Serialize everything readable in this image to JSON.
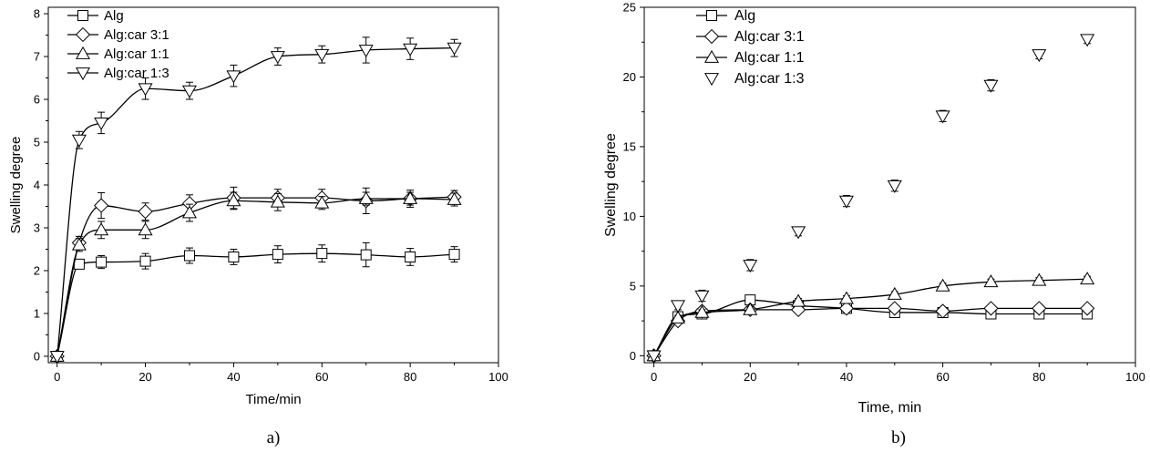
{
  "chart_data": [
    {
      "type": "line",
      "caption": "a)",
      "xlabel": "Time/min",
      "ylabel": "Swelling degree",
      "xlim": [
        -2,
        100
      ],
      "ylim": [
        -0.15,
        8.15
      ],
      "xticks": [
        0,
        20,
        40,
        60,
        80,
        100
      ],
      "yticks": [
        0,
        1,
        2,
        3,
        4,
        5,
        6,
        7,
        8
      ],
      "legend_position": "top-left",
      "x": [
        0,
        5,
        10,
        20,
        30,
        40,
        50,
        60,
        70,
        80,
        90
      ],
      "series": [
        {
          "name": "Alg",
          "marker": "square",
          "line": true,
          "values": [
            0,
            2.15,
            2.2,
            2.22,
            2.35,
            2.32,
            2.38,
            2.4,
            2.37,
            2.32,
            2.38
          ],
          "errors": [
            0,
            0.1,
            0.15,
            0.18,
            0.18,
            0.18,
            0.2,
            0.2,
            0.28,
            0.2,
            0.18
          ]
        },
        {
          "name": "Alg:car 3:1",
          "marker": "diamond",
          "line": true,
          "values": [
            0,
            2.65,
            3.52,
            3.38,
            3.57,
            3.7,
            3.7,
            3.7,
            3.63,
            3.68,
            3.72
          ],
          "errors": [
            0,
            0.15,
            0.3,
            0.2,
            0.2,
            0.25,
            0.2,
            0.2,
            0.3,
            0.2,
            0.15
          ]
        },
        {
          "name": "Alg:car 1:1",
          "marker": "triangle-up",
          "line": true,
          "values": [
            0,
            2.6,
            2.95,
            2.95,
            3.35,
            3.63,
            3.6,
            3.58,
            3.68,
            3.68,
            3.66
          ],
          "errors": [
            0,
            0.15,
            0.2,
            0.2,
            0.2,
            0.2,
            0.2,
            0.15,
            0.15,
            0.15,
            0.15
          ]
        },
        {
          "name": "Alg:car 1:3",
          "marker": "triangle-down",
          "line": true,
          "values": [
            0,
            5.05,
            5.45,
            6.25,
            6.2,
            6.55,
            7.0,
            7.05,
            7.15,
            7.18,
            7.2
          ],
          "errors": [
            0,
            0.2,
            0.25,
            0.25,
            0.2,
            0.25,
            0.2,
            0.2,
            0.3,
            0.25,
            0.2
          ]
        }
      ]
    },
    {
      "type": "line",
      "caption": "b)",
      "xlabel": "Time, min",
      "ylabel": "Swelling degree",
      "xlim": [
        -2,
        100
      ],
      "ylim": [
        -0.5,
        25
      ],
      "xticks": [
        0,
        20,
        40,
        60,
        80,
        100
      ],
      "yticks": [
        0,
        5,
        10,
        15,
        20,
        25
      ],
      "legend_position": "top-left",
      "x": [
        0,
        5,
        10,
        20,
        30,
        40,
        50,
        60,
        70,
        80,
        90
      ],
      "series": [
        {
          "name": "Alg",
          "marker": "square",
          "line": true,
          "values": [
            0,
            2.8,
            3.0,
            4.0,
            3.6,
            3.4,
            3.1,
            3.1,
            3.0,
            3.0,
            3.0
          ],
          "errors": [
            0,
            0.2,
            0.25,
            0.3,
            0.25,
            0.25,
            0.3,
            0.25,
            0.25,
            0.25,
            0.25
          ]
        },
        {
          "name": "Alg:car 3:1",
          "marker": "diamond",
          "line": true,
          "values": [
            0,
            2.5,
            3.2,
            3.3,
            3.3,
            3.4,
            3.4,
            3.2,
            3.4,
            3.4,
            3.4
          ],
          "errors": [
            0,
            0.2,
            0.2,
            0.2,
            0.2,
            0.2,
            0.2,
            0.2,
            0.2,
            0.2,
            0.2
          ]
        },
        {
          "name": "Alg:car 1:1",
          "marker": "triangle-up",
          "line": true,
          "values": [
            0,
            2.7,
            3.1,
            3.3,
            3.9,
            4.1,
            4.4,
            5.0,
            5.3,
            5.4,
            5.5
          ],
          "errors": [
            0,
            0.2,
            0.2,
            0.2,
            0.2,
            0.2,
            0.2,
            0.2,
            0.2,
            0.2,
            0.2
          ]
        },
        {
          "name": "Alg:car 1:3",
          "marker": "triangle-down",
          "line": false,
          "values": [
            0,
            3.6,
            4.3,
            6.5,
            8.9,
            11.1,
            12.2,
            17.2,
            19.4,
            21.6,
            22.7
          ],
          "errors": [
            0,
            0.3,
            0.4,
            0.4,
            0.3,
            0.4,
            0.4,
            0.4,
            0.4,
            0.3,
            0.3
          ]
        }
      ]
    }
  ]
}
